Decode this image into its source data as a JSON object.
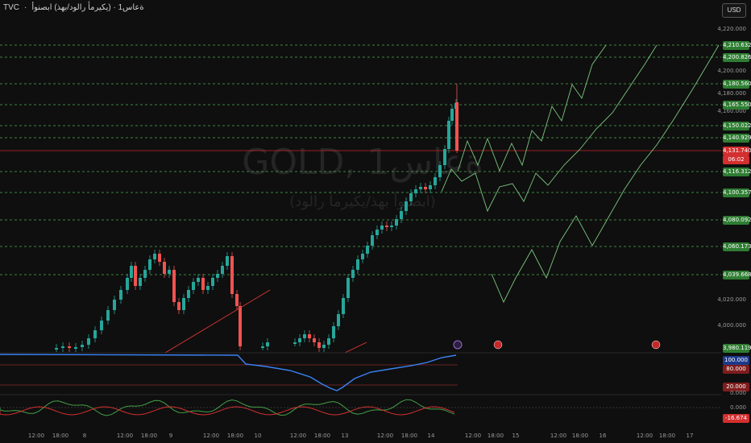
{
  "header": {
    "source": "TVC",
    "dot": "·",
    "title": "ةعاس1 · (يكيرمأ رالود/بهذ) ابصنوأ"
  },
  "currency_button": "USD",
  "watermark": {
    "symbol": "GOLD, 1ةعاس",
    "description": "(ابصنوأ بهذ/يكيرمأ رالود)"
  },
  "price_axis": {
    "ticks": [
      "4,220.000",
      "4,200.000",
      "4,180.000",
      "4,160.000",
      "4,020.000",
      "4,000.000"
    ]
  },
  "price_labels": [
    {
      "text": "4,210.632",
      "color": "#2e7d32"
    },
    {
      "text": "4,200.826",
      "color": "#2e7d32"
    },
    {
      "text": "4,180.560",
      "color": "#2e7d32"
    },
    {
      "text": "4,165.550",
      "color": "#2e7d32"
    },
    {
      "text": "4,150.022",
      "color": "#2e7d32"
    },
    {
      "text": "4,140.929",
      "color": "#2e7d32"
    },
    {
      "text": "4,131.740",
      "color": "#d32f2f"
    },
    {
      "text": "06:02",
      "color": "#d32f2f"
    },
    {
      "text": "4,116.312",
      "color": "#2e7d32"
    },
    {
      "text": "4,100.357",
      "color": "#2e7d32"
    },
    {
      "text": "4,080.092",
      "color": "#2e7d32"
    },
    {
      "text": "4,060.173",
      "color": "#2e7d32"
    },
    {
      "text": "4,039.668",
      "color": "#2e7d32"
    },
    {
      "text": "3,980.119",
      "color": "#2e7d32"
    }
  ],
  "indicator1": {
    "labels": [
      {
        "text": "100.000",
        "color": "#1e3a8a"
      },
      {
        "text": "80.000",
        "color": "#7f1d1d"
      },
      {
        "text": "20.000",
        "color": "#7f1d1d"
      }
    ]
  },
  "indicator2": {
    "ticks": [
      "0.000",
      "0.000"
    ],
    "value_label": {
      "text": "-16.674",
      "color": "#d32f2f"
    }
  },
  "time_axis": {
    "ticks": [
      "12:00",
      "18:00",
      "8",
      "12:00",
      "18:00",
      "9",
      "12:00",
      "18:00",
      "10",
      "12:00",
      "18:00",
      "13",
      "12:00",
      "18:00",
      "14",
      "12:00",
      "18:00",
      "15",
      "12:00",
      "18:00",
      "16",
      "12:00",
      "18:00",
      "17"
    ]
  },
  "chart_data": {
    "type": "candlestick",
    "symbol": "GOLD",
    "y_range": [
      3975,
      4230
    ],
    "resistance_levels": [
      4210.632,
      4200.826,
      4180.56,
      4165.55,
      4150.022,
      4140.929,
      4116.312,
      4100.357,
      4080.092,
      4060.173,
      4039.668
    ],
    "last_price": 4131.74
  },
  "colors": {
    "bull": "#26a69a",
    "bear": "#ef5350",
    "level": "#4caf50",
    "rsi": "#3b82f6"
  }
}
